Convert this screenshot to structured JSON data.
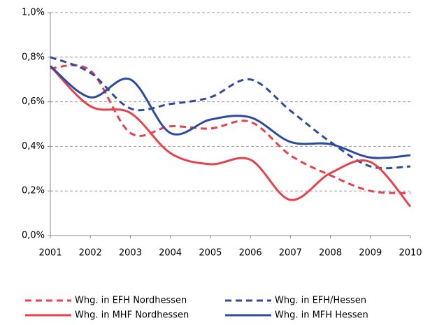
{
  "chart_data": {
    "type": "line",
    "x": [
      2001,
      2002,
      2003,
      2004,
      2005,
      2006,
      2007,
      2008,
      2009,
      2010
    ],
    "xlim": [
      2001,
      2010
    ],
    "xticks": [
      2001,
      2002,
      2003,
      2004,
      2005,
      2006,
      2007,
      2008,
      2009,
      2010
    ],
    "ylim": [
      0,
      1.0
    ],
    "yticks": [
      {
        "value": 0,
        "label": "0,0%"
      },
      {
        "value": 0.2,
        "label": "0,2%"
      },
      {
        "value": 0.4,
        "label": "0,4%"
      },
      {
        "value": 0.6,
        "label": "0,6%"
      },
      {
        "value": 0.8,
        "label": "0,8%"
      },
      {
        "value": 1.0,
        "label": "1,0%"
      }
    ],
    "grid": true,
    "legend": "bottom",
    "series": [
      {
        "name": "Whg. in EFH Nordhessen",
        "color": "#e8414b",
        "dash": true,
        "values": [
          0.75,
          0.74,
          0.46,
          0.49,
          0.48,
          0.51,
          0.36,
          0.27,
          0.2,
          0.19
        ]
      },
      {
        "name": "Whg. in EFH/Hessen",
        "color": "#2f4b9f",
        "dash": true,
        "values": [
          0.8,
          0.73,
          0.57,
          0.59,
          0.62,
          0.7,
          0.56,
          0.42,
          0.31,
          0.31
        ]
      },
      {
        "name": "Whg. in MHF Nordhessen",
        "color": "#e8414b",
        "dash": false,
        "values": [
          0.76,
          0.58,
          0.55,
          0.37,
          0.32,
          0.34,
          0.16,
          0.28,
          0.33,
          0.13
        ]
      },
      {
        "name": "Whg. in MFH Hessen",
        "color": "#2f4b9f",
        "dash": false,
        "values": [
          0.76,
          0.62,
          0.7,
          0.46,
          0.52,
          0.53,
          0.42,
          0.41,
          0.35,
          0.36
        ]
      }
    ]
  }
}
